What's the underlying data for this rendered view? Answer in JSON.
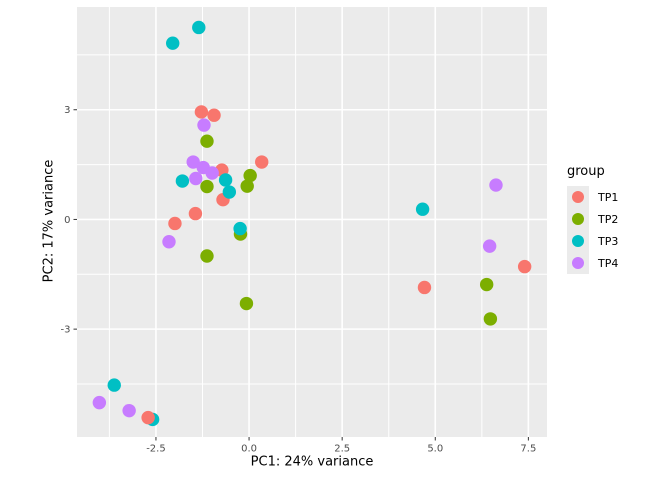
{
  "chart_data": {
    "type": "scatter",
    "xlabel": "PC1: 24% variance",
    "ylabel": "PC2: 17% variance",
    "xlim": [
      -4.62,
      8.0
    ],
    "ylim": [
      -5.95,
      5.81
    ],
    "x_ticks": {
      "values": [
        -2.5,
        0,
        2.5,
        5,
        7.5
      ],
      "labels": [
        "-2.5",
        "0.0",
        "2.5",
        "5.0",
        "7.5"
      ]
    },
    "y_ticks": {
      "values": [
        3,
        0,
        -3
      ],
      "labels": [
        "3",
        "0",
        "-3"
      ]
    },
    "x_minor": [
      -3.75,
      -1.25,
      1.25,
      3.75,
      6.25
    ],
    "y_minor": [
      4.5,
      1.5,
      -1.5,
      -4.5
    ],
    "grid": true,
    "legend": {
      "title": "group",
      "position": "right"
    },
    "panel_background": "#EBEBEB",
    "gridline_color": "#FFFFFF",
    "tick_color": "#333333",
    "tick_label_color": "#4D4D4D",
    "groups": [
      {
        "name": "TP1",
        "color": "#F8766D"
      },
      {
        "name": "TP2",
        "color": "#7CAE00"
      },
      {
        "name": "TP3",
        "color": "#00BFC4"
      },
      {
        "name": "TP4",
        "color": "#C77CFF"
      }
    ],
    "points": [
      {
        "x": -1.13,
        "y": 2.14,
        "g": "TP2"
      },
      {
        "x": 0.03,
        "y": 1.2,
        "g": "TP2"
      },
      {
        "x": -0.05,
        "y": 0.91,
        "g": "TP2"
      },
      {
        "x": -1.13,
        "y": 0.9,
        "g": "TP2"
      },
      {
        "x": -0.23,
        "y": -0.4,
        "g": "TP2"
      },
      {
        "x": -1.13,
        "y": -1.0,
        "g": "TP2"
      },
      {
        "x": -0.07,
        "y": -2.3,
        "g": "TP2"
      },
      {
        "x": 6.38,
        "y": -1.78,
        "g": "TP2"
      },
      {
        "x": 6.48,
        "y": -2.72,
        "g": "TP2"
      },
      {
        "x": -2.59,
        "y": -5.47,
        "g": "TP3"
      },
      {
        "x": -1.28,
        "y": 2.94,
        "g": "TP1"
      },
      {
        "x": -0.94,
        "y": 2.85,
        "g": "TP1"
      },
      {
        "x": 0.34,
        "y": 1.57,
        "g": "TP1"
      },
      {
        "x": -0.73,
        "y": 1.35,
        "g": "TP1"
      },
      {
        "x": -0.7,
        "y": 0.54,
        "g": "TP1"
      },
      {
        "x": -1.44,
        "y": 0.16,
        "g": "TP1"
      },
      {
        "x": -1.99,
        "y": -0.11,
        "g": "TP1"
      },
      {
        "x": 4.71,
        "y": -1.86,
        "g": "TP1"
      },
      {
        "x": 7.4,
        "y": -1.29,
        "g": "TP1"
      },
      {
        "x": -2.71,
        "y": -5.42,
        "g": "TP1"
      },
      {
        "x": -1.35,
        "y": 5.25,
        "g": "TP3"
      },
      {
        "x": -2.05,
        "y": 4.82,
        "g": "TP3"
      },
      {
        "x": -1.79,
        "y": 1.05,
        "g": "TP3"
      },
      {
        "x": -0.63,
        "y": 1.08,
        "g": "TP3"
      },
      {
        "x": -0.53,
        "y": 0.75,
        "g": "TP3"
      },
      {
        "x": -0.24,
        "y": -0.25,
        "g": "TP3"
      },
      {
        "x": 4.66,
        "y": 0.28,
        "g": "TP3"
      },
      {
        "x": -3.62,
        "y": -4.53,
        "g": "TP3"
      },
      {
        "x": -1.21,
        "y": 2.58,
        "g": "TP4"
      },
      {
        "x": -1.5,
        "y": 1.57,
        "g": "TP4"
      },
      {
        "x": -1.23,
        "y": 1.42,
        "g": "TP4"
      },
      {
        "x": -0.99,
        "y": 1.27,
        "g": "TP4"
      },
      {
        "x": -1.43,
        "y": 1.12,
        "g": "TP4"
      },
      {
        "x": -2.15,
        "y": -0.61,
        "g": "TP4"
      },
      {
        "x": 6.63,
        "y": 0.94,
        "g": "TP4"
      },
      {
        "x": 6.46,
        "y": -0.73,
        "g": "TP4"
      },
      {
        "x": -4.02,
        "y": -5.01,
        "g": "TP4"
      },
      {
        "x": -3.22,
        "y": -5.23,
        "g": "TP4"
      }
    ]
  }
}
